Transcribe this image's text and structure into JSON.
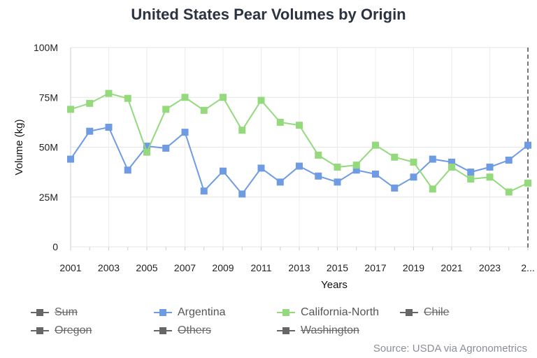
{
  "title": "United States Pear Volumes by Origin",
  "source": "Source: USDA via Agronometrics",
  "chart_data": {
    "type": "line",
    "title": "United States Pear Volumes by Origin",
    "xlabel": "Years",
    "ylabel": "Volume (kg)",
    "ylim": [
      0,
      100000000
    ],
    "y_ticks": [
      "0",
      "25M",
      "50M",
      "75M",
      "100M"
    ],
    "x": [
      2001,
      2002,
      2003,
      2004,
      2005,
      2006,
      2007,
      2008,
      2009,
      2010,
      2011,
      2012,
      2013,
      2014,
      2015,
      2016,
      2017,
      2018,
      2019,
      2020,
      2021,
      2022,
      2023,
      2024,
      2025
    ],
    "x_tick_labels": [
      "2001",
      "2003",
      "2005",
      "2007",
      "2009",
      "2011",
      "2013",
      "2015",
      "2017",
      "2019",
      "2021",
      "2023",
      "2..."
    ],
    "grid": true,
    "legend_position": "bottom",
    "series": [
      {
        "name": "Argentina",
        "color": "#6f9be3",
        "values": [
          44,
          58,
          60,
          38.5,
          50.5,
          49.5,
          57.5,
          28,
          38,
          26.5,
          39.5,
          32.5,
          40.5,
          35.5,
          32.5,
          38.5,
          36.5,
          29.5,
          35,
          44,
          42.5,
          37.5,
          40,
          43.5,
          51
        ]
      },
      {
        "name": "California-North",
        "color": "#94d97c",
        "values": [
          69,
          72,
          77,
          74.5,
          47.5,
          69,
          75,
          68.5,
          75,
          58.5,
          73.5,
          62.5,
          61,
          46,
          40,
          41,
          51,
          45,
          42.5,
          29,
          40,
          34,
          35,
          27.5,
          32
        ]
      }
    ],
    "hidden_series": [
      "Sum",
      "Chile",
      "Oregon",
      "Others",
      "Washington"
    ]
  },
  "legend": [
    {
      "label": "Sum",
      "hidden": true,
      "color": "#666666"
    },
    {
      "label": "Argentina",
      "hidden": false,
      "color": "#6f9be3"
    },
    {
      "label": "California-North",
      "hidden": false,
      "color": "#94d97c"
    },
    {
      "label": "Chile",
      "hidden": true,
      "color": "#666666"
    },
    {
      "label": "Oregon",
      "hidden": true,
      "color": "#666666"
    },
    {
      "label": "Others",
      "hidden": true,
      "color": "#666666"
    },
    {
      "label": "Washington",
      "hidden": true,
      "color": "#666666"
    }
  ]
}
